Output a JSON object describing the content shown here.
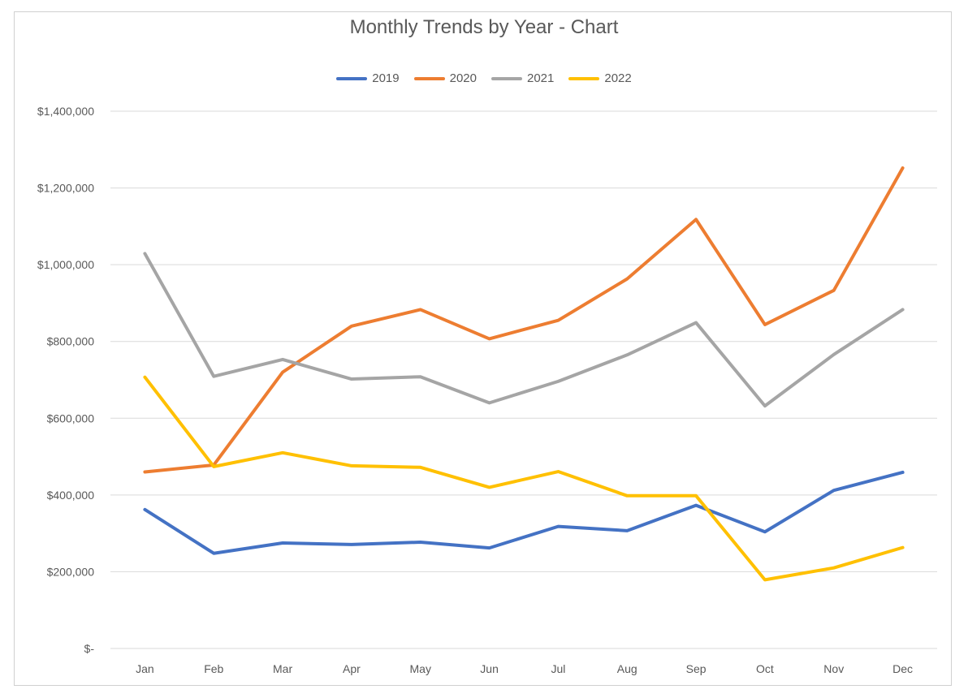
{
  "chart_data": {
    "type": "line",
    "title": "Monthly Trends by Year - Chart",
    "xlabel": "",
    "ylabel": "",
    "categories": [
      "Jan",
      "Feb",
      "Mar",
      "Apr",
      "May",
      "Jun",
      "Jul",
      "Aug",
      "Sep",
      "Oct",
      "Nov",
      "Dec"
    ],
    "ylim": [
      0,
      1400000
    ],
    "yticks": [
      0,
      200000,
      400000,
      600000,
      800000,
      1000000,
      1200000,
      1400000
    ],
    "ytick_labels": [
      "$-",
      "$200,000",
      "$400,000",
      "$600,000",
      "$800,000",
      "$1,000,000",
      "$1,200,000",
      "$1,400,000"
    ],
    "grid": true,
    "legend_position": "top",
    "series": [
      {
        "name": "2019",
        "color": "#4472C4",
        "values": [
          362000,
          248000,
          275000,
          271000,
          277000,
          262000,
          318000,
          307000,
          373000,
          304000,
          412000,
          459000
        ]
      },
      {
        "name": "2020",
        "color": "#ED7D31",
        "values": [
          460000,
          478000,
          720000,
          840000,
          883000,
          807000,
          855000,
          963000,
          1118000,
          844000,
          933000,
          1252000
        ]
      },
      {
        "name": "2021",
        "color": "#A5A5A5",
        "values": [
          1029000,
          709000,
          753000,
          702000,
          708000,
          640000,
          696000,
          765000,
          849000,
          632000,
          766000,
          883000
        ]
      },
      {
        "name": "2022",
        "color": "#FFC000",
        "values": [
          707000,
          474000,
          510000,
          476000,
          472000,
          420000,
          461000,
          398000,
          398000,
          179000,
          210000,
          263000
        ]
      }
    ]
  }
}
